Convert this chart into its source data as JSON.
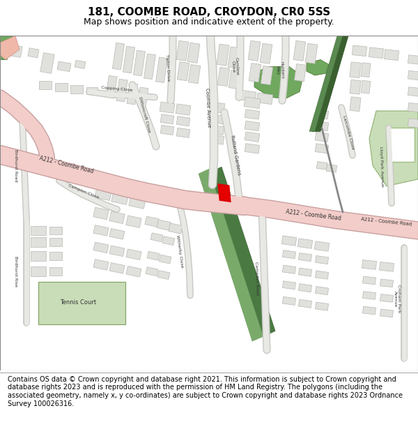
{
  "title": "181, COOMBE ROAD, CROYDON, CR0 5SS",
  "subtitle": "Map shows position and indicative extent of the property.",
  "footer": "Contains OS data © Crown copyright and database right 2021. This information is subject to Crown copyright and database rights 2023 and is reproduced with the permission of HM Land Registry. The polygons (including the associated geometry, namely x, y co-ordinates) are subject to Crown copyright and database rights 2023 Ordnance Survey 100026316.",
  "bg_color": "#ffffff",
  "map_bg": "#ffffff",
  "road_pink": "#f2cdc9",
  "road_outline": "#c8a0a0",
  "road_grey": "#e8e8e4",
  "road_grey_outline": "#c8c8c4",
  "building_fill": "#e0e0dc",
  "building_outline": "#b8b8b4",
  "green_dark": "#6fa85e",
  "green_dark2": "#4a7a42",
  "green_light": "#c8ddb8",
  "red_plot": "#dd0000",
  "grey_path": "#c8c8c4",
  "title_fontsize": 11,
  "subtitle_fontsize": 9,
  "footer_fontsize": 7.0,
  "label_size": 5.2
}
